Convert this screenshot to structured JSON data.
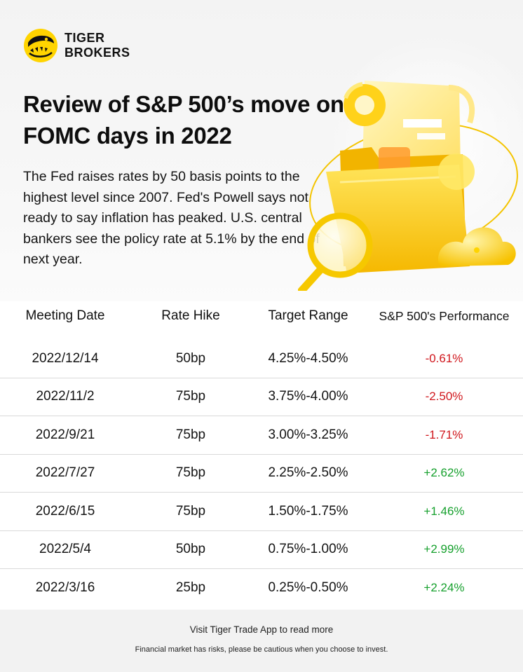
{
  "brand": {
    "line1": "TIGER",
    "line2": "BROKERS",
    "logo_icon": "tiger-logo-icon",
    "accent_color": "#FFD400"
  },
  "title": "Review of S&P 500’s move on FOMC days in 2022",
  "subtitle": "The Fed raises rates by 50 basis points to the highest level since 2007. Fed's Powell says not ready to say inflation has peaked. U.S. central bankers see the policy rate at 5.1% by the end of next year.",
  "illustration_icon": "folder-magnifier-cloud-icon",
  "table": {
    "headers": [
      "Meeting Date",
      "Rate Hike",
      "Target Range",
      "S&P 500's Performance"
    ],
    "rows": [
      {
        "date": "2022/12/14",
        "hike": "50bp",
        "range": "4.25%-4.50%",
        "performance": "-0.61%",
        "direction": "down"
      },
      {
        "date": "2022/11/2",
        "hike": "75bp",
        "range": "3.75%-4.00%",
        "performance": "-2.50%",
        "direction": "down"
      },
      {
        "date": "2022/9/21",
        "hike": "75bp",
        "range": "3.00%-3.25%",
        "performance": "-1.71%",
        "direction": "down"
      },
      {
        "date": "2022/7/27",
        "hike": "75bp",
        "range": "2.25%-2.50%",
        "performance": "+2.62%",
        "direction": "up"
      },
      {
        "date": "2022/6/15",
        "hike": "75bp",
        "range": "1.50%-1.75%",
        "performance": "+1.46%",
        "direction": "up"
      },
      {
        "date": "2022/5/4",
        "hike": "50bp",
        "range": "0.75%-1.00%",
        "performance": "+2.99%",
        "direction": "up"
      },
      {
        "date": "2022/3/16",
        "hike": "25bp",
        "range": "0.25%-0.50%",
        "performance": "+2.24%",
        "direction": "up"
      }
    ],
    "negative_color": "#D0161C",
    "positive_color": "#16A02D"
  },
  "footer": {
    "cta": "Visit Tiger Trade App to read more",
    "disclaimer": "Financial market has risks, please be cautious when you choose to invest."
  }
}
